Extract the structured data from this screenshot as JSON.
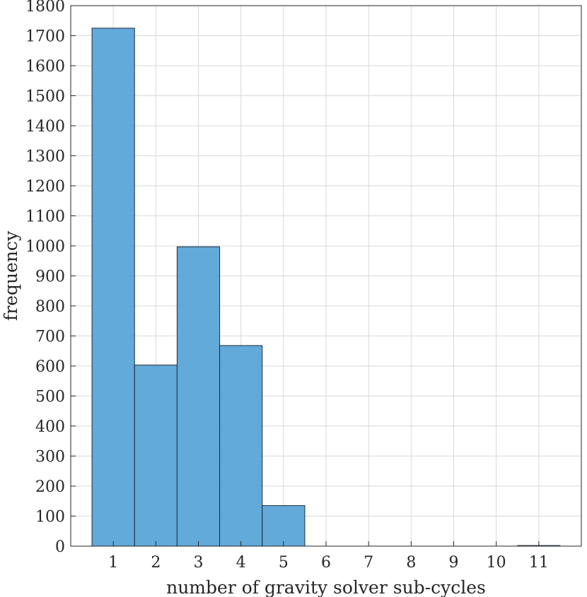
{
  "chart_data": {
    "type": "bar",
    "title": "",
    "xlabel": "number of gravity solver sub-cycles",
    "ylabel": "frequency",
    "categories": [
      "1",
      "2",
      "3",
      "4",
      "5",
      "6",
      "7",
      "8",
      "9",
      "10",
      "11"
    ],
    "values": [
      1725,
      603,
      997,
      668,
      135,
      0,
      0,
      0,
      0,
      0,
      2
    ],
    "ylim": [
      0,
      1800
    ],
    "yticks": [
      "0",
      "100",
      "200",
      "300",
      "400",
      "500",
      "600",
      "700",
      "800",
      "900",
      "1000",
      "1100",
      "1200",
      "1300",
      "1400",
      "1500",
      "1600",
      "1700",
      "1800"
    ],
    "grid": true,
    "legend": "none",
    "colors": {
      "bar_fill": "#5aa5d8",
      "bar_edge": "#1f2a36",
      "grid": "#d9d9d9"
    }
  }
}
